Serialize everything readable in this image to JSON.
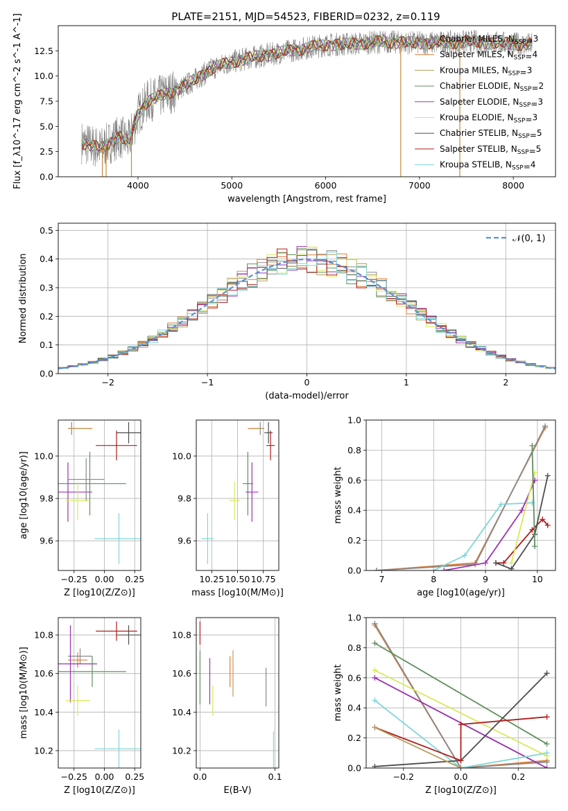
{
  "figure_title": "PLATE=2151, MJD=54523, FIBERID=0232, z=0.119",
  "colors": {
    "axis": "#000000",
    "grid": "#b0b0b0",
    "normal_curve": "#5b8fd6",
    "data_grey": "#7f7f7f"
  },
  "models": [
    {
      "name": "Chabrier MILES",
      "nssp": "3",
      "color": "#888888"
    },
    {
      "name": "Salpeter MILES",
      "nssp": "4",
      "color": "#e07b32"
    },
    {
      "name": "Kroupa MILES",
      "nssp": "3",
      "color": "#b89b5e"
    },
    {
      "name": "Chabrier ELODIE",
      "nssp": "2",
      "color": "#5f8f5f"
    },
    {
      "name": "Salpeter ELODIE",
      "nssp": "3",
      "color": "#9b30b0"
    },
    {
      "name": "Kroupa ELODIE",
      "nssp": "3",
      "color": "#d9e85a"
    },
    {
      "name": "Chabrier STELIB",
      "nssp": "5",
      "color": "#4d4d4d"
    },
    {
      "name": "Salpeter STELIB",
      "nssp": "5",
      "color": "#b01c1c"
    },
    {
      "name": "Kroupa STELIB",
      "nssp": "4",
      "color": "#7fd6d6"
    }
  ],
  "chart_data": [
    {
      "id": "spectrum",
      "type": "line",
      "xlabel": "wavelength [Angstrom, rest frame]",
      "ylabel": "Flux [f_λ10^-17 erg cm^-2 s^-1 A^-1]",
      "xlim": [
        3150,
        8450
      ],
      "ylim": [
        0,
        15
      ],
      "xticks": [
        4000,
        5000,
        6000,
        7000,
        8000
      ],
      "yticks": [
        0.0,
        2.5,
        5.0,
        7.5,
        10.0,
        12.5
      ],
      "ytick_labels": [
        "0.0",
        "2.5",
        "5.0",
        "7.5",
        "10.0",
        "12.5"
      ],
      "legend_position": "upper-right",
      "continuum_points": [
        [
          3400,
          3.4
        ],
        [
          3600,
          2.8
        ],
        [
          3800,
          4.0
        ],
        [
          3900,
          3.5
        ],
        [
          4000,
          6.2
        ],
        [
          4100,
          7.5
        ],
        [
          4300,
          8.2
        ],
        [
          4500,
          9.0
        ],
        [
          4800,
          10.8
        ],
        [
          5000,
          11.4
        ],
        [
          5200,
          11.8
        ],
        [
          5500,
          12.3
        ],
        [
          5800,
          12.8
        ],
        [
          6000,
          13.1
        ],
        [
          6300,
          13.2
        ],
        [
          6600,
          13.4
        ],
        [
          6900,
          13.3
        ],
        [
          7200,
          13.3
        ],
        [
          7600,
          13.4
        ],
        [
          8000,
          13.2
        ],
        [
          8200,
          13.1
        ]
      ],
      "sharp_features": [
        [
          3620,
          0
        ],
        [
          3660,
          0
        ],
        [
          3930,
          0
        ],
        [
          6800,
          0
        ],
        [
          7430,
          0
        ]
      ],
      "grid": false
    },
    {
      "id": "residual_hist",
      "type": "histogram",
      "xlabel": "(data-model)/error",
      "ylabel": "Normed distribution",
      "xlim": [
        -2.5,
        2.5
      ],
      "ylim": [
        0,
        0.525
      ],
      "xticks": [
        -2,
        -1,
        0,
        1,
        2
      ],
      "xtick_labels": [
        "−2",
        "−1",
        "0",
        "1",
        "2"
      ],
      "yticks": [
        0.0,
        0.1,
        0.2,
        0.3,
        0.4,
        0.5
      ],
      "ytick_labels": [
        "0.0",
        "0.1",
        "0.2",
        "0.3",
        "0.4",
        "0.5"
      ],
      "bin_width": 0.1,
      "reference_label": "𝒩(0, 1)",
      "grid": true
    },
    {
      "id": "age_vs_Z",
      "type": "errorbar",
      "xlabel": "Z [log10(Z/Z⊙)]",
      "ylabel": "age  [log10(age/yr)]",
      "xlim": [
        -0.38,
        0.3
      ],
      "ylim": [
        9.46,
        10.17
      ],
      "xticks": [
        -0.25,
        0.0,
        0.25
      ],
      "xtick_labels": [
        "−0.25",
        "0.00",
        "0.25"
      ],
      "yticks": [
        9.6,
        9.8,
        10.0
      ],
      "ytick_labels": [
        "9.6",
        "9.8",
        "10.0"
      ],
      "points": [
        {
          "model": 0,
          "x": -0.27,
          "xerr": 0.03,
          "y": 10.13,
          "yerr": 0.03
        },
        {
          "model": 1,
          "x": -0.2,
          "xerr": 0.1,
          "y": 10.13,
          "yerr": 0.0
        },
        {
          "model": 2,
          "x": -0.22,
          "xerr": 0.08,
          "y": 10.13,
          "yerr": 0.0
        },
        {
          "model": 3,
          "x": -0.12,
          "xerr": 0.3,
          "y": 9.87,
          "yerr": 0.15
        },
        {
          "model": 4,
          "x": -0.3,
          "xerr": 0.2,
          "y": 9.83,
          "yerr": 0.14
        },
        {
          "model": 5,
          "x": -0.22,
          "xerr": 0.1,
          "y": 9.79,
          "yerr": 0.09
        },
        {
          "model": 6,
          "x": 0.2,
          "xerr": 0.1,
          "y": 10.11,
          "yerr": 0.05
        },
        {
          "model": 7,
          "x": 0.1,
          "xerr": 0.17,
          "y": 10.05,
          "yerr": 0.07
        },
        {
          "model": 8,
          "x": 0.12,
          "xerr": 0.2,
          "y": 9.61,
          "yerr": 0.12
        },
        {
          "model": 0,
          "x": -0.15,
          "xerr": 0.15,
          "y": 9.89,
          "yerr": 0.1
        }
      ]
    },
    {
      "id": "age_vs_mass",
      "type": "errorbar",
      "xlabel": "mass [log10(M/M⊙)]",
      "xlim": [
        10.1,
        10.9
      ],
      "ylim": [
        9.46,
        10.17
      ],
      "xticks": [
        10.25,
        10.5,
        10.75
      ],
      "xtick_labels": [
        "10.25",
        "10.50",
        "10.75"
      ],
      "yticks": [
        9.6,
        9.8,
        10.0
      ],
      "ytick_labels": [
        "9.6",
        "9.8",
        "10.0"
      ],
      "points": [
        {
          "model": 0,
          "x": 10.72,
          "xerr": 0.04,
          "y": 10.13,
          "yerr": 0.03
        },
        {
          "model": 1,
          "x": 10.66,
          "xerr": 0.06,
          "y": 10.13,
          "yerr": 0.0
        },
        {
          "model": 2,
          "x": 10.7,
          "xerr": 0.05,
          "y": 10.13,
          "yerr": 0.0
        },
        {
          "model": 3,
          "x": 10.6,
          "xerr": 0.05,
          "y": 9.87,
          "yerr": 0.15
        },
        {
          "model": 4,
          "x": 10.64,
          "xerr": 0.06,
          "y": 9.83,
          "yerr": 0.14
        },
        {
          "model": 5,
          "x": 10.47,
          "xerr": 0.05,
          "y": 9.79,
          "yerr": 0.09
        },
        {
          "model": 6,
          "x": 10.8,
          "xerr": 0.04,
          "y": 10.11,
          "yerr": 0.05
        },
        {
          "model": 7,
          "x": 10.82,
          "xerr": 0.04,
          "y": 10.05,
          "yerr": 0.07
        },
        {
          "model": 8,
          "x": 10.21,
          "xerr": 0.06,
          "y": 9.61,
          "yerr": 0.12
        }
      ]
    },
    {
      "id": "massweight_vs_age",
      "type": "line",
      "xlabel": "age  [log10(age/yr)]",
      "ylabel": "mass weight",
      "xlim": [
        6.7,
        10.35
      ],
      "ylim": [
        0,
        1
      ],
      "xticks": [
        7,
        8,
        9,
        10
      ],
      "yticks": [
        0.0,
        0.2,
        0.4,
        0.6,
        0.8,
        1.0
      ],
      "ytick_labels": [
        "0.0",
        "0.2",
        "0.4",
        "0.6",
        "0.8",
        "1.0"
      ],
      "series": [
        {
          "model": 1,
          "x": [
            6.9,
            8.8,
            10.15
          ],
          "y": [
            0.0,
            0.05,
            0.95
          ]
        },
        {
          "model": 0,
          "x": [
            6.9,
            8.8,
            10.15
          ],
          "y": [
            0.0,
            0.04,
            0.96
          ]
        },
        {
          "model": 7,
          "x": [
            9.2,
            9.35,
            9.9,
            10.1,
            10.2
          ],
          "y": [
            0.05,
            0.05,
            0.27,
            0.34,
            0.3
          ]
        },
        {
          "model": 6,
          "x": [
            9.2,
            9.5,
            9.95,
            10.2
          ],
          "y": [
            0.05,
            0.01,
            0.24,
            0.63
          ]
        },
        {
          "model": 8,
          "x": [
            8.0,
            8.6,
            9.3,
            9.9
          ],
          "y": [
            0.0,
            0.1,
            0.44,
            0.45
          ]
        },
        {
          "model": 4,
          "x": [
            8.2,
            9.0,
            9.7,
            9.95
          ],
          "y": [
            0.0,
            0.05,
            0.4,
            0.6
          ]
        },
        {
          "model": 5,
          "x": [
            9.5,
            9.95
          ],
          "y": [
            0.05,
            0.65
          ]
        },
        {
          "model": 3,
          "x": [
            9.9,
            9.95
          ],
          "y": [
            0.83,
            0.16
          ]
        }
      ]
    },
    {
      "id": "mass_vs_Z",
      "type": "errorbar",
      "xlabel": "Z [log10(Z/Z⊙)]",
      "ylabel": "mass [log10(M/M⊙)]",
      "xlim": [
        -0.38,
        0.3
      ],
      "ylim": [
        10.11,
        10.89
      ],
      "xticks": [
        -0.25,
        0.0,
        0.25
      ],
      "xtick_labels": [
        "−0.25",
        "0.00",
        "0.25"
      ],
      "yticks": [
        10.2,
        10.4,
        10.6,
        10.8
      ],
      "ytick_labels": [
        "10.2",
        "10.4",
        "10.6",
        "10.8"
      ],
      "points": [
        {
          "model": 0,
          "x": -0.2,
          "xerr": 0.1,
          "y": 10.69,
          "yerr": 0.04
        },
        {
          "model": 1,
          "x": -0.22,
          "xerr": 0.08,
          "y": 10.67,
          "yerr": 0.04
        },
        {
          "model": 3,
          "x": -0.1,
          "xerr": 0.28,
          "y": 10.61,
          "yerr": 0.08
        },
        {
          "model": 4,
          "x": -0.28,
          "xerr": 0.22,
          "y": 10.65,
          "yerr": 0.2
        },
        {
          "model": 5,
          "x": -0.22,
          "xerr": 0.1,
          "y": 10.46,
          "yerr": 0.08
        },
        {
          "model": 6,
          "x": 0.2,
          "xerr": 0.1,
          "y": 10.8,
          "yerr": 0.05
        },
        {
          "model": 7,
          "x": 0.1,
          "xerr": 0.17,
          "y": 10.82,
          "yerr": 0.05
        },
        {
          "model": 8,
          "x": 0.12,
          "xerr": 0.2,
          "y": 10.21,
          "yerr": 0.1
        }
      ]
    },
    {
      "id": "mass_vs_ebv",
      "type": "errorbar",
      "xlabel": "E(B-V)",
      "xlim": [
        -0.005,
        0.105
      ],
      "ylim": [
        10.11,
        10.89
      ],
      "xticks": [
        0.0,
        0.1
      ],
      "xtick_labels": [
        "0.0",
        "0.1"
      ],
      "yticks": [
        10.2,
        10.4,
        10.6,
        10.8
      ],
      "ytick_labels": [
        "10.2",
        "10.4",
        "10.6",
        "10.8"
      ],
      "points": [
        {
          "model": 7,
          "x": 0.0,
          "xerr": 0.0,
          "y": 10.81,
          "yerr": 0.06
        },
        {
          "model": 3,
          "x": 0.0,
          "xerr": 0.0,
          "y": 10.58,
          "yerr": 0.14
        },
        {
          "model": 4,
          "x": 0.013,
          "xerr": 0.0,
          "y": 10.56,
          "yerr": 0.12
        },
        {
          "model": 5,
          "x": 0.017,
          "xerr": 0.0,
          "y": 10.46,
          "yerr": 0.08
        },
        {
          "model": 1,
          "x": 0.04,
          "xerr": 0.0,
          "y": 10.61,
          "yerr": 0.08
        },
        {
          "model": 2,
          "x": 0.044,
          "xerr": 0.0,
          "y": 10.6,
          "yerr": 0.12
        },
        {
          "model": 0,
          "x": 0.088,
          "xerr": 0.0,
          "y": 10.53,
          "yerr": 0.1
        },
        {
          "model": 8,
          "x": 0.098,
          "xerr": 0.0,
          "y": 10.2,
          "yerr": 0.1
        }
      ]
    },
    {
      "id": "massweight_vs_Z",
      "type": "line",
      "xlabel": "Z [log10(Z/Z⊙)]",
      "ylabel": "mass weight",
      "xlim": [
        -0.33,
        0.33
      ],
      "ylim": [
        0,
        1
      ],
      "xticks": [
        -0.2,
        0.0,
        0.2
      ],
      "xtick_labels": [
        "−0.2",
        "0.0",
        "0.2"
      ],
      "yticks": [
        0.0,
        0.2,
        0.4,
        0.6,
        0.8,
        1.0
      ],
      "ytick_labels": [
        "0.0",
        "0.2",
        "0.4",
        "0.6",
        "0.8",
        "1.0"
      ],
      "series": [
        {
          "model": 1,
          "x": [
            -0.3,
            0.0,
            0.3
          ],
          "y": [
            0.95,
            0.0,
            0.05
          ]
        },
        {
          "model": 0,
          "x": [
            -0.3,
            0.0,
            0.3
          ],
          "y": [
            0.96,
            0.0,
            0.04
          ]
        },
        {
          "model": 3,
          "x": [
            -0.3,
            0.3
          ],
          "y": [
            0.83,
            0.16
          ]
        },
        {
          "model": 5,
          "x": [
            -0.3,
            0.3
          ],
          "y": [
            0.65,
            0.08
          ]
        },
        {
          "model": 4,
          "x": [
            -0.3,
            0.3
          ],
          "y": [
            0.6,
            0.0
          ]
        },
        {
          "model": 8,
          "x": [
            -0.3,
            0.0,
            0.3
          ],
          "y": [
            0.45,
            0.0,
            0.1
          ]
        },
        {
          "model": 6,
          "x": [
            -0.3,
            0.0,
            0.3
          ],
          "y": [
            0.01,
            0.05,
            0.63
          ]
        },
        {
          "model": 7,
          "x": [
            -0.3,
            0.0,
            0.0,
            0.3
          ],
          "y": [
            0.27,
            0.05,
            0.29,
            0.34
          ]
        },
        {
          "model": 2,
          "x": [
            -0.3,
            0.0
          ],
          "y": [
            0.27,
            0.0
          ]
        }
      ]
    }
  ]
}
